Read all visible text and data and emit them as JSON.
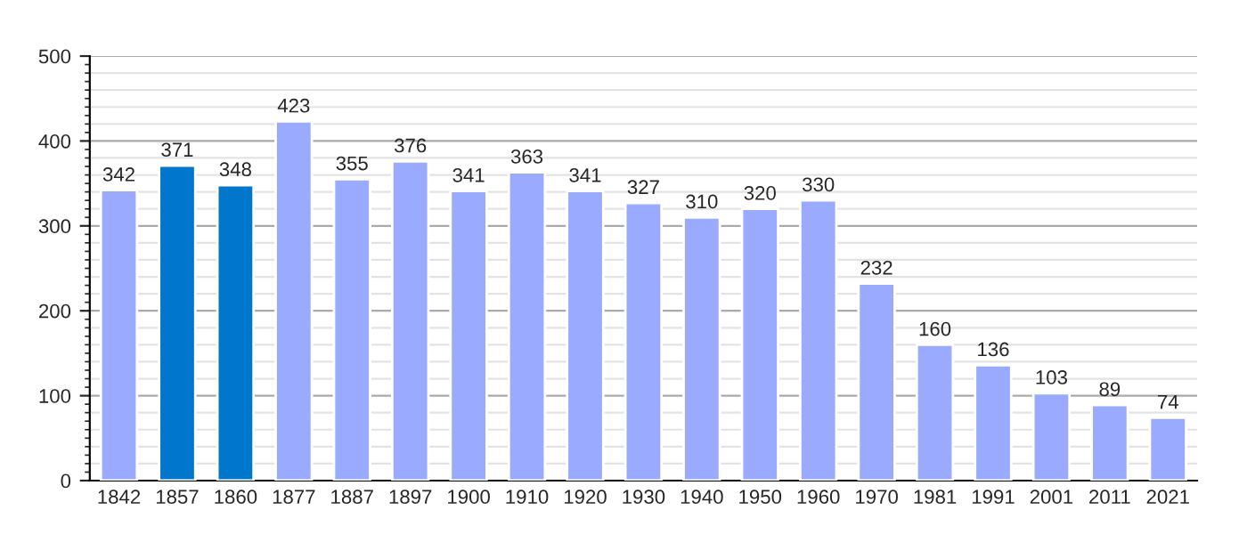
{
  "chart_data": {
    "type": "bar",
    "categories": [
      "1842",
      "1857",
      "1860",
      "1877",
      "1887",
      "1897",
      "1900",
      "1910",
      "1920",
      "1930",
      "1940",
      "1950",
      "1960",
      "1970",
      "1981",
      "1991",
      "2001",
      "2011",
      "2021"
    ],
    "values": [
      342,
      371,
      348,
      423,
      355,
      376,
      341,
      363,
      341,
      327,
      310,
      320,
      330,
      232,
      160,
      136,
      103,
      89,
      74
    ],
    "colors": [
      "#99aaff",
      "#0077cc",
      "#0077cc",
      "#99aaff",
      "#99aaff",
      "#99aaff",
      "#99aaff",
      "#99aaff",
      "#99aaff",
      "#99aaff",
      "#99aaff",
      "#99aaff",
      "#99aaff",
      "#99aaff",
      "#99aaff",
      "#99aaff",
      "#99aaff",
      "#99aaff",
      "#99aaff"
    ],
    "ylim": [
      0,
      500
    ],
    "yticks": [
      0,
      100,
      200,
      300,
      400,
      500
    ],
    "grid": "y",
    "data_labels": true
  }
}
